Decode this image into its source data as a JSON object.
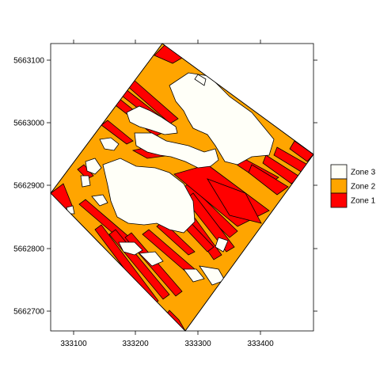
{
  "chart_data": {
    "type": "map",
    "title": "",
    "xlabel": "",
    "ylabel": "",
    "x_ticks": [
      "333100",
      "333200",
      "333300",
      "333400"
    ],
    "y_ticks": [
      "5662700",
      "5662800",
      "5662900",
      "5663000",
      "5663100"
    ],
    "legend_position": "right",
    "legend": [
      {
        "label": "Zone 3",
        "color": "#fffff8"
      },
      {
        "label": "Zone 2",
        "color": "#ffa500"
      },
      {
        "label": "Zone 1",
        "color": "#ff0000"
      }
    ]
  }
}
